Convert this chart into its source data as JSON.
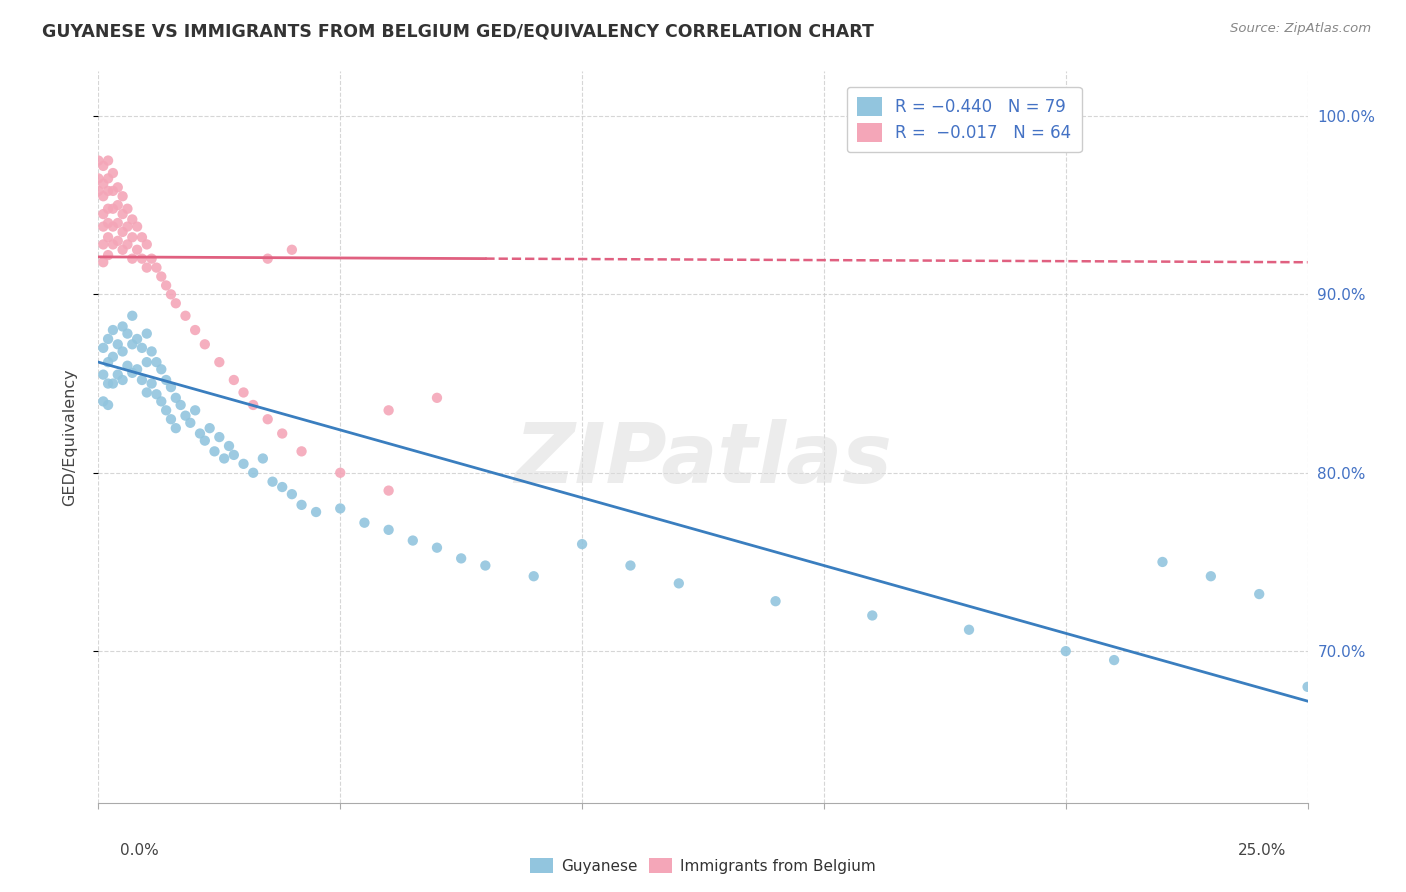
{
  "title": "GUYANESE VS IMMIGRANTS FROM BELGIUM GED/EQUIVALENCY CORRELATION CHART",
  "source_text": "Source: ZipAtlas.com",
  "ylabel": "GED/Equivalency",
  "ytick_labels": [
    "70.0%",
    "80.0%",
    "90.0%",
    "100.0%"
  ],
  "ytick_values": [
    0.7,
    0.8,
    0.9,
    1.0
  ],
  "color_blue": "#92c5de",
  "color_pink": "#f4a6b8",
  "color_blue_line": "#3a7ebf",
  "color_pink_line": "#e06080",
  "color_grid": "#cccccc",
  "background_color": "#ffffff",
  "watermark": "ZIPatlas",
  "blue_x": [
    0.001,
    0.001,
    0.001,
    0.002,
    0.002,
    0.002,
    0.002,
    0.003,
    0.003,
    0.003,
    0.004,
    0.004,
    0.005,
    0.005,
    0.005,
    0.006,
    0.006,
    0.007,
    0.007,
    0.007,
    0.008,
    0.008,
    0.009,
    0.009,
    0.01,
    0.01,
    0.01,
    0.011,
    0.011,
    0.012,
    0.012,
    0.013,
    0.013,
    0.014,
    0.014,
    0.015,
    0.015,
    0.016,
    0.016,
    0.017,
    0.018,
    0.019,
    0.02,
    0.021,
    0.022,
    0.023,
    0.024,
    0.025,
    0.026,
    0.027,
    0.028,
    0.03,
    0.032,
    0.034,
    0.036,
    0.038,
    0.04,
    0.042,
    0.045,
    0.05,
    0.055,
    0.06,
    0.065,
    0.07,
    0.075,
    0.08,
    0.09,
    0.1,
    0.11,
    0.12,
    0.14,
    0.16,
    0.18,
    0.2,
    0.21,
    0.22,
    0.23,
    0.24,
    0.25
  ],
  "blue_y": [
    0.87,
    0.855,
    0.84,
    0.875,
    0.862,
    0.85,
    0.838,
    0.88,
    0.865,
    0.85,
    0.872,
    0.855,
    0.882,
    0.868,
    0.852,
    0.878,
    0.86,
    0.888,
    0.872,
    0.856,
    0.875,
    0.858,
    0.87,
    0.852,
    0.878,
    0.862,
    0.845,
    0.868,
    0.85,
    0.862,
    0.844,
    0.858,
    0.84,
    0.852,
    0.835,
    0.848,
    0.83,
    0.842,
    0.825,
    0.838,
    0.832,
    0.828,
    0.835,
    0.822,
    0.818,
    0.825,
    0.812,
    0.82,
    0.808,
    0.815,
    0.81,
    0.805,
    0.8,
    0.808,
    0.795,
    0.792,
    0.788,
    0.782,
    0.778,
    0.78,
    0.772,
    0.768,
    0.762,
    0.758,
    0.752,
    0.748,
    0.742,
    0.76,
    0.748,
    0.738,
    0.728,
    0.72,
    0.712,
    0.7,
    0.695,
    0.75,
    0.742,
    0.732,
    0.68
  ],
  "pink_x": [
    0.0,
    0.0,
    0.0,
    0.001,
    0.001,
    0.001,
    0.001,
    0.001,
    0.001,
    0.001,
    0.002,
    0.002,
    0.002,
    0.002,
    0.002,
    0.002,
    0.002,
    0.003,
    0.003,
    0.003,
    0.003,
    0.003,
    0.004,
    0.004,
    0.004,
    0.004,
    0.005,
    0.005,
    0.005,
    0.005,
    0.006,
    0.006,
    0.006,
    0.007,
    0.007,
    0.007,
    0.008,
    0.008,
    0.009,
    0.009,
    0.01,
    0.01,
    0.011,
    0.012,
    0.013,
    0.014,
    0.015,
    0.016,
    0.018,
    0.02,
    0.022,
    0.025,
    0.028,
    0.03,
    0.032,
    0.035,
    0.038,
    0.042,
    0.05,
    0.06,
    0.035,
    0.04,
    0.06,
    0.07
  ],
  "pink_y": [
    0.975,
    0.965,
    0.958,
    0.972,
    0.962,
    0.955,
    0.945,
    0.938,
    0.928,
    0.918,
    0.975,
    0.965,
    0.958,
    0.948,
    0.94,
    0.932,
    0.922,
    0.968,
    0.958,
    0.948,
    0.938,
    0.928,
    0.96,
    0.95,
    0.94,
    0.93,
    0.955,
    0.945,
    0.935,
    0.925,
    0.948,
    0.938,
    0.928,
    0.942,
    0.932,
    0.92,
    0.938,
    0.925,
    0.932,
    0.92,
    0.928,
    0.915,
    0.92,
    0.915,
    0.91,
    0.905,
    0.9,
    0.895,
    0.888,
    0.88,
    0.872,
    0.862,
    0.852,
    0.845,
    0.838,
    0.83,
    0.822,
    0.812,
    0.8,
    0.79,
    0.92,
    0.925,
    0.835,
    0.842
  ],
  "blue_line_x": [
    0.0,
    0.25
  ],
  "blue_line_y": [
    0.862,
    0.672
  ],
  "pink_line_x": [
    0.0,
    0.25
  ],
  "pink_line_y": [
    0.921,
    0.918
  ],
  "xlim": [
    0.0,
    0.25
  ],
  "ylim": [
    0.615,
    1.025
  ]
}
